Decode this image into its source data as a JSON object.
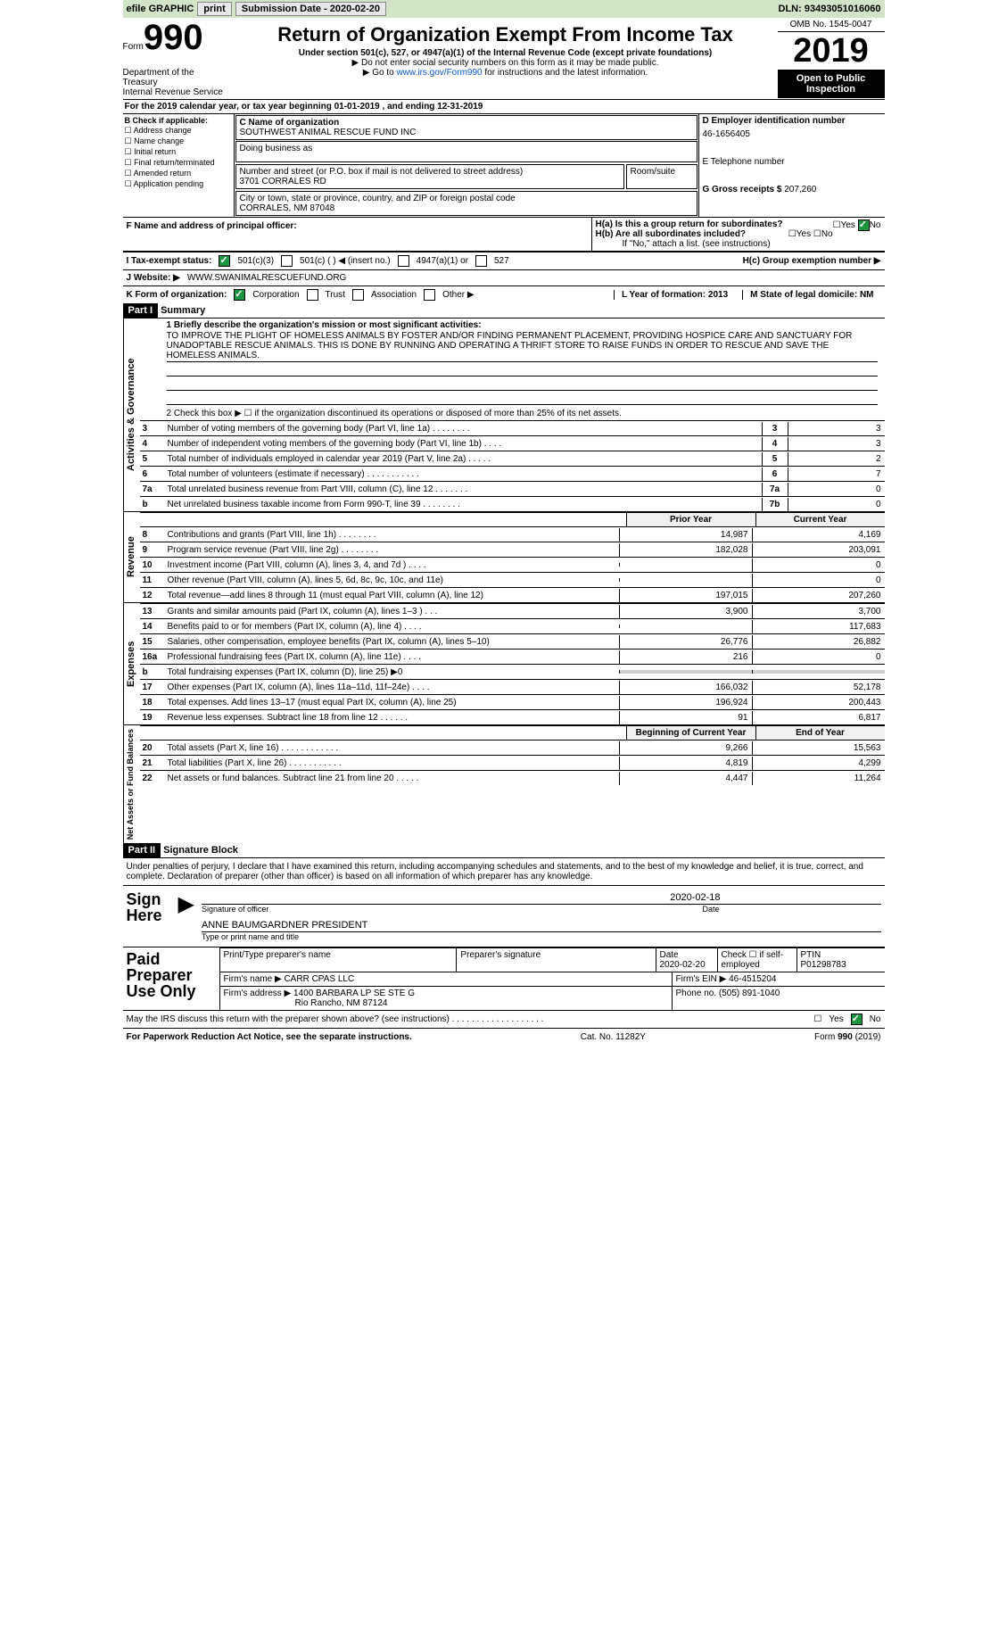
{
  "topbar": {
    "efile": "efile GRAPHIC",
    "print": "print",
    "sub_label": "Submission Date - 2020-02-20",
    "dln": "DLN: 93493051016060"
  },
  "header": {
    "form_word": "Form",
    "form_num": "990",
    "title": "Return of Organization Exempt From Income Tax",
    "sub1": "Under section 501(c), 527, or 4947(a)(1) of the Internal Revenue Code (except private foundations)",
    "sub2": "▶ Do not enter social security numbers on this form as it may be made public.",
    "sub3_pre": "▶ Go to ",
    "sub3_link": "www.irs.gov/Form990",
    "sub3_post": " for instructions and the latest information.",
    "dept": "Department of the Treasury\nInternal Revenue Service",
    "omb": "OMB No. 1545-0047",
    "year": "2019",
    "inspect": "Open to Public Inspection"
  },
  "period": "For the 2019 calendar year, or tax year beginning 01-01-2019   , and ending 12-31-2019",
  "box_b": {
    "title": "B Check if applicable:",
    "items": [
      "Address change",
      "Name change",
      "Initial return",
      "Final return/terminated",
      "Amended return",
      "Application pending"
    ]
  },
  "box_c": {
    "name_label": "C Name of organization",
    "name": "SOUTHWEST ANIMAL RESCUE FUND INC",
    "dba": "Doing business as",
    "addr_label": "Number and street (or P.O. box if mail is not delivered to street address)",
    "room": "Room/suite",
    "addr": "3701 CORRALES RD",
    "city_label": "City or town, state or province, country, and ZIP or foreign postal code",
    "city": "CORRALES, NM  87048"
  },
  "box_d": {
    "ein_label": "D Employer identification number",
    "ein": "46-1656405",
    "tel_label": "E Telephone number",
    "gross_label": "G Gross receipts $",
    "gross": "207,260"
  },
  "box_f": "F  Name and address of principal officer:",
  "box_h": {
    "a": "H(a)  Is this a group return for subordinates?",
    "b": "H(b)  Are all subordinates included?",
    "b_note": "If \"No,\" attach a list. (see instructions)",
    "c": "H(c)  Group exemption number ▶",
    "yes": "Yes",
    "no": "No"
  },
  "tax_status": {
    "label": "I  Tax-exempt status:",
    "opts": [
      "501(c)(3)",
      "501(c) (  ) ◀ (insert no.)",
      "4947(a)(1) or",
      "527"
    ]
  },
  "website": {
    "label": "J  Website: ▶",
    "val": "WWW.SWANIMALRESCUEFUND.ORG"
  },
  "k_line": {
    "label": "K Form of organization:",
    "opts": [
      "Corporation",
      "Trust",
      "Association",
      "Other ▶"
    ]
  },
  "l_line": "L Year of formation: 2013",
  "m_line": "M State of legal domicile: NM",
  "part1": {
    "hdr": "Part I",
    "title": "Summary",
    "q1": "1  Briefly describe the organization's mission or most significant activities:",
    "mission": "TO IMPROVE THE PLIGHT OF HOMELESS ANIMALS BY FOSTER AND/OR FINDING PERMANENT PLACEMENT, PROVIDING HOSPICE CARE AND SANCTUARY FOR UNADOPTABLE RESCUE ANIMALS. THIS IS DONE BY RUNNING AND OPERATING A THRIFT STORE TO RAISE FUNDS IN ORDER TO RESCUE AND SAVE THE HOMELESS ANIMALS.",
    "q2": "2   Check this box ▶ ☐  if the organization discontinued its operations or disposed of more than 25% of its net assets.",
    "gov_lines": [
      {
        "n": "3",
        "d": "Number of voting members of the governing body (Part VI, line 1a)   .    .    .    .    .    .    .    .",
        "c": "3",
        "v": "3"
      },
      {
        "n": "4",
        "d": "Number of independent voting members of the governing body (Part VI, line 1b)   .    .    .    .",
        "c": "4",
        "v": "3"
      },
      {
        "n": "5",
        "d": "Total number of individuals employed in calendar year 2019 (Part V, line 2a)   .    .    .    .    .",
        "c": "5",
        "v": "2"
      },
      {
        "n": "6",
        "d": "Total number of volunteers (estimate if necessary)   .    .    .    .    .    .    .    .    .    .    .",
        "c": "6",
        "v": "7"
      },
      {
        "n": "7a",
        "d": "Total unrelated business revenue from Part VIII, column (C), line 12   .    .    .    .    .    .    .",
        "c": "7a",
        "v": "0"
      },
      {
        "n": "b",
        "d": "Net unrelated business taxable income from Form 990-T, line 39   .    .    .    .    .    .    .    .",
        "c": "7b",
        "v": "0"
      }
    ],
    "col_prior": "Prior Year",
    "col_current": "Current Year",
    "rev_lines": [
      {
        "n": "8",
        "d": "Contributions and grants (Part VIII, line 1h)   .    .    .    .    .    .    .    .",
        "p": "14,987",
        "c": "4,169"
      },
      {
        "n": "9",
        "d": "Program service revenue (Part VIII, line 2g)   .    .    .    .    .    .    .    .",
        "p": "182,028",
        "c": "203,091"
      },
      {
        "n": "10",
        "d": "Investment income (Part VIII, column (A), lines 3, 4, and 7d )   .    .    .    .",
        "p": "",
        "c": "0"
      },
      {
        "n": "11",
        "d": "Other revenue (Part VIII, column (A), lines 5, 6d, 8c, 9c, 10c, and 11e)",
        "p": "",
        "c": "0"
      },
      {
        "n": "12",
        "d": "Total revenue—add lines 8 through 11 (must equal Part VIII, column (A), line 12)",
        "p": "197,015",
        "c": "207,260"
      }
    ],
    "exp_lines": [
      {
        "n": "13",
        "d": "Grants and similar amounts paid (Part IX, column (A), lines 1–3 )   .    .    .",
        "p": "3,900",
        "c": "3,700"
      },
      {
        "n": "14",
        "d": "Benefits paid to or for members (Part IX, column (A), line 4)   .    .    .    .",
        "p": "",
        "c": "117,683"
      },
      {
        "n": "15",
        "d": "Salaries, other compensation, employee benefits (Part IX, column (A), lines 5–10)",
        "p": "26,776",
        "c": "26,882"
      },
      {
        "n": "16a",
        "d": "Professional fundraising fees (Part IX, column (A), line 11e)   .    .    .    .",
        "p": "216",
        "c": "0"
      },
      {
        "n": "b",
        "d": "Total fundraising expenses (Part IX, column (D), line 25) ▶0",
        "p": "GREY",
        "c": "GREY"
      },
      {
        "n": "17",
        "d": "Other expenses (Part IX, column (A), lines 11a–11d, 11f–24e)   .    .    .    .",
        "p": "166,032",
        "c": "52,178"
      },
      {
        "n": "18",
        "d": "Total expenses. Add lines 13–17 (must equal Part IX, column (A), line 25)",
        "p": "196,924",
        "c": "200,443"
      },
      {
        "n": "19",
        "d": "Revenue less expenses. Subtract line 18 from line 12   .    .    .    .    .    .",
        "p": "91",
        "c": "6,817"
      }
    ],
    "col_beg": "Beginning of Current Year",
    "col_end": "End of Year",
    "na_lines": [
      {
        "n": "20",
        "d": "Total assets (Part X, line 16)   .    .    .    .    .    .    .    .    .    .    .    .",
        "p": "9,266",
        "c": "15,563"
      },
      {
        "n": "21",
        "d": "Total liabilities (Part X, line 26)   .    .    .    .    .    .    .    .    .    .    .",
        "p": "4,819",
        "c": "4,299"
      },
      {
        "n": "22",
        "d": "Net assets or fund balances. Subtract line 21 from line 20   .    .    .    .    .",
        "p": "4,447",
        "c": "11,264"
      }
    ],
    "side_gov": "Activities & Governance",
    "side_rev": "Revenue",
    "side_exp": "Expenses",
    "side_na": "Net Assets or Fund Balances"
  },
  "part2": {
    "hdr": "Part II",
    "title": "Signature Block",
    "decl": "Under penalties of perjury, I declare that I have examined this return, including accompanying schedules and statements, and to the best of my knowledge and belief, it is true, correct, and complete. Declaration of preparer (other than officer) is based on all information of which preparer has any knowledge.",
    "sign_here": "Sign Here",
    "sig_officer": "Signature of officer",
    "sig_date": "2020-02-18",
    "date_label": "Date",
    "name_title": "ANNE BAUMGARDNER  PRESIDENT",
    "name_label": "Type or print name and title",
    "paid": "Paid Preparer Use Only",
    "prep_name": "Print/Type preparer's name",
    "prep_sig": "Preparer's signature",
    "prep_date_label": "Date",
    "prep_date": "2020-02-20",
    "check_self": "Check ☐ if self-employed",
    "ptin_label": "PTIN",
    "ptin": "P01298783",
    "firm_name_label": "Firm's name    ▶",
    "firm_name": "CARR CPAS LLC",
    "firm_ein_label": "Firm's EIN ▶",
    "firm_ein": "46-4515204",
    "firm_addr_label": "Firm's address ▶",
    "firm_addr": "1400 BARBARA LP SE STE G",
    "firm_city": "Rio Rancho, NM  87124",
    "phone_label": "Phone no.",
    "phone": "(505) 891-1040",
    "discuss": "May the IRS discuss this return with the preparer shown above? (see instructions)   .    .    .    .    .    .    .    .    .    .    .    .    .    .    .    .    .    .    ."
  },
  "footer": {
    "pra": "For Paperwork Reduction Act Notice, see the separate instructions.",
    "cat": "Cat. No. 11282Y",
    "form": "Form 990 (2019)"
  }
}
